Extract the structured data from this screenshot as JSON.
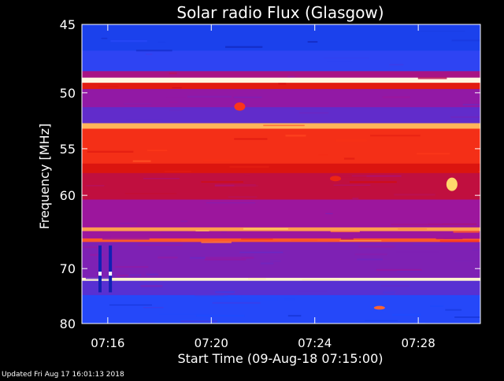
{
  "chart_data": {
    "type": "heatmap",
    "title": "Solar radio Flux (Glasgow)",
    "xlabel": "Start Time (09-Aug-18 07:15:00)",
    "ylabel": "Frequency [MHz]",
    "footer": "Updated Fri Aug 17 16:01:13 2018",
    "x_unit": "minutes after 07:15:00",
    "xlim_minutes": [
      0,
      15.4
    ],
    "x_ticks": [
      {
        "label": "07:16",
        "minute": 1
      },
      {
        "label": "07:20",
        "minute": 5
      },
      {
        "label": "07:24",
        "minute": 9
      },
      {
        "label": "07:28",
        "minute": 13
      }
    ],
    "ylim_mhz": [
      45,
      80
    ],
    "y_ticks": [
      45,
      50,
      55,
      60,
      70,
      80
    ],
    "y_scale": "reciprocal",
    "colormap": [
      "#0a0a8a",
      "#1e4bff",
      "#5a2fd0",
      "#a0149a",
      "#d20c0c",
      "#ff3a1a",
      "#ffe070",
      "#ffffff"
    ],
    "frequency_bands": [
      {
        "f1": 45.0,
        "f2": 46.8,
        "intensity": 0.12
      },
      {
        "f1": 46.8,
        "f2": 48.3,
        "intensity": 0.18
      },
      {
        "f1": 48.3,
        "f2": 48.8,
        "intensity": 0.45
      },
      {
        "f1": 48.8,
        "f2": 49.2,
        "intensity": 0.97
      },
      {
        "f1": 49.2,
        "f2": 49.7,
        "intensity": 0.62
      },
      {
        "f1": 49.7,
        "f2": 51.2,
        "intensity": 0.4
      },
      {
        "f1": 51.2,
        "f2": 52.6,
        "intensity": 0.3
      },
      {
        "f1": 52.6,
        "f2": 53.1,
        "intensity": 0.82
      },
      {
        "f1": 53.1,
        "f2": 56.5,
        "intensity": 0.68
      },
      {
        "f1": 56.5,
        "f2": 57.5,
        "intensity": 0.6
      },
      {
        "f1": 57.5,
        "f2": 60.5,
        "intensity": 0.52
      },
      {
        "f1": 60.5,
        "f2": 64.0,
        "intensity": 0.42
      },
      {
        "f1": 64.0,
        "f2": 64.5,
        "intensity": 0.8
      },
      {
        "f1": 64.5,
        "f2": 65.5,
        "intensity": 0.42
      },
      {
        "f1": 65.5,
        "f2": 66.0,
        "intensity": 0.74
      },
      {
        "f1": 66.0,
        "f2": 71.5,
        "intensity": 0.36
      },
      {
        "f1": 71.5,
        "f2": 72.0,
        "intensity": 0.95
      },
      {
        "f1": 72.0,
        "f2": 74.5,
        "intensity": 0.28
      },
      {
        "f1": 74.5,
        "f2": 80.0,
        "intensity": 0.16
      }
    ],
    "features": [
      {
        "kind": "spike",
        "minute": 0.7,
        "f1": 66.5,
        "f2": 74.0,
        "intensity": 0.05
      },
      {
        "kind": "spike",
        "minute": 1.1,
        "f1": 66.5,
        "f2": 74.0,
        "intensity": 0.05
      },
      {
        "kind": "burst",
        "minute": 14.3,
        "f1": 58.0,
        "f2": 59.5,
        "intensity": 0.85
      },
      {
        "kind": "burst",
        "minute": 11.5,
        "f1": 76.5,
        "f2": 77.2,
        "intensity": 0.75
      },
      {
        "kind": "burst",
        "minute": 6.1,
        "f1": 50.8,
        "f2": 51.5,
        "intensity": 0.7
      },
      {
        "kind": "burst",
        "minute": 9.8,
        "f1": 57.8,
        "f2": 58.4,
        "intensity": 0.65
      }
    ]
  }
}
